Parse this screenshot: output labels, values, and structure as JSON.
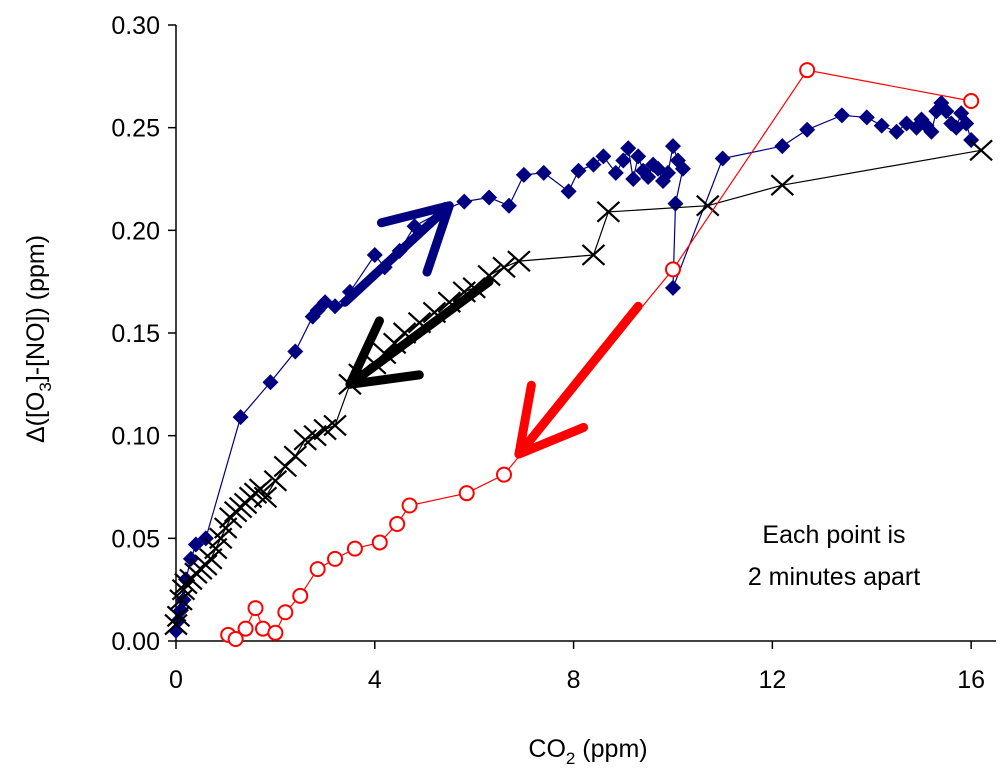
{
  "chart_data": {
    "type": "scatter",
    "title": "",
    "xlabel": {
      "main": "CO",
      "sub": "2",
      "tail": " (ppm)"
    },
    "ylabel": {
      "pre": "Δ([O",
      "sub": "3",
      "tail": "]-[NO]) (ppm)"
    },
    "xlim": [
      0,
      16.5
    ],
    "ylim": [
      0,
      0.3
    ],
    "x_ticks": [
      0,
      4,
      8,
      12,
      16
    ],
    "x_tick_labels": [
      "0",
      "4",
      "8",
      "12",
      "16"
    ],
    "y_ticks": [
      0,
      0.05,
      0.1,
      0.15,
      0.2,
      0.25,
      0.3
    ],
    "y_tick_labels": [
      "0.00",
      "0.05",
      "0.10",
      "0.15",
      "0.20",
      "0.25",
      "0.30"
    ],
    "grid": false,
    "annotation": [
      "Each point is",
      "2 minutes apart"
    ],
    "series": [
      {
        "marker": "diamond",
        "color": "#000080",
        "x": [
          0.0,
          0.05,
          0.1,
          0.15,
          0.2,
          0.3,
          0.4,
          0.6,
          1.3,
          1.9,
          2.4,
          2.75,
          2.85,
          3.0,
          3.2,
          3.5,
          4.0,
          4.2,
          4.5,
          4.8,
          5.4,
          5.8,
          6.3,
          6.7,
          7.0,
          7.4,
          7.9,
          8.1,
          8.4,
          8.6,
          8.85,
          9.0,
          9.1,
          9.2,
          9.3,
          9.4,
          9.5,
          9.6,
          9.7,
          9.8,
          9.9,
          10.0,
          10.1,
          10.2,
          10.05,
          10.0,
          11.0,
          12.2,
          12.7,
          13.4,
          13.9,
          14.2,
          14.5,
          14.7,
          14.9,
          15.0,
          15.1,
          15.2,
          15.3,
          15.4,
          15.5,
          15.6,
          15.7,
          15.8,
          15.9,
          16.0
        ],
        "y": [
          0.005,
          0.01,
          0.015,
          0.02,
          0.03,
          0.04,
          0.047,
          0.05,
          0.109,
          0.126,
          0.141,
          0.158,
          0.161,
          0.165,
          0.163,
          0.17,
          0.188,
          0.182,
          0.19,
          0.202,
          0.21,
          0.214,
          0.216,
          0.212,
          0.227,
          0.228,
          0.219,
          0.229,
          0.232,
          0.236,
          0.228,
          0.234,
          0.24,
          0.225,
          0.236,
          0.229,
          0.226,
          0.232,
          0.23,
          0.224,
          0.228,
          0.241,
          0.234,
          0.23,
          0.213,
          0.172,
          0.235,
          0.241,
          0.249,
          0.256,
          0.255,
          0.251,
          0.248,
          0.252,
          0.25,
          0.254,
          0.251,
          0.248,
          0.258,
          0.262,
          0.258,
          0.252,
          0.25,
          0.257,
          0.252,
          0.244
        ]
      },
      {
        "marker": "x",
        "color": "#000000",
        "x": [
          0.0,
          0.05,
          0.1,
          0.15,
          0.2,
          0.3,
          0.4,
          0.5,
          0.6,
          0.7,
          0.8,
          0.9,
          1.0,
          1.1,
          1.2,
          1.3,
          1.4,
          1.5,
          1.6,
          1.7,
          1.8,
          2.0,
          2.2,
          2.4,
          2.6,
          2.8,
          3.0,
          3.2,
          3.5,
          3.7,
          4.0,
          4.2,
          4.4,
          4.6,
          4.9,
          5.2,
          5.5,
          5.8,
          6.0,
          6.3,
          6.6,
          6.9,
          8.4,
          8.7,
          10.7,
          12.2,
          16.2
        ],
        "y": [
          0.008,
          0.012,
          0.02,
          0.025,
          0.028,
          0.03,
          0.033,
          0.035,
          0.037,
          0.04,
          0.045,
          0.05,
          0.055,
          0.06,
          0.063,
          0.065,
          0.067,
          0.07,
          0.072,
          0.074,
          0.07,
          0.078,
          0.085,
          0.09,
          0.098,
          0.1,
          0.103,
          0.105,
          0.125,
          0.13,
          0.135,
          0.14,
          0.145,
          0.15,
          0.155,
          0.16,
          0.165,
          0.17,
          0.172,
          0.178,
          0.182,
          0.185,
          0.188,
          0.209,
          0.212,
          0.222,
          0.239
        ]
      },
      {
        "marker": "circle",
        "color": "#ff0000",
        "x": [
          1.05,
          1.2,
          1.4,
          1.6,
          1.75,
          2.0,
          2.2,
          2.5,
          2.85,
          3.2,
          3.6,
          4.1,
          4.45,
          4.7,
          5.85,
          6.6,
          10.0,
          12.7,
          16.0
        ],
        "y": [
          0.003,
          0.001,
          0.006,
          0.016,
          0.006,
          0.004,
          0.014,
          0.022,
          0.035,
          0.04,
          0.045,
          0.048,
          0.057,
          0.066,
          0.072,
          0.081,
          0.181,
          0.278,
          0.263
        ]
      }
    ],
    "arrows": [
      {
        "color": "#000080",
        "from": [
          3.4,
          0.165
        ],
        "to": [
          5.5,
          0.212
        ]
      },
      {
        "color": "#000000",
        "from": [
          6.3,
          0.175
        ],
        "to": [
          3.5,
          0.125
        ]
      },
      {
        "color": "#ff0000",
        "from": [
          9.3,
          0.163
        ],
        "to": [
          6.9,
          0.091
        ]
      }
    ]
  }
}
